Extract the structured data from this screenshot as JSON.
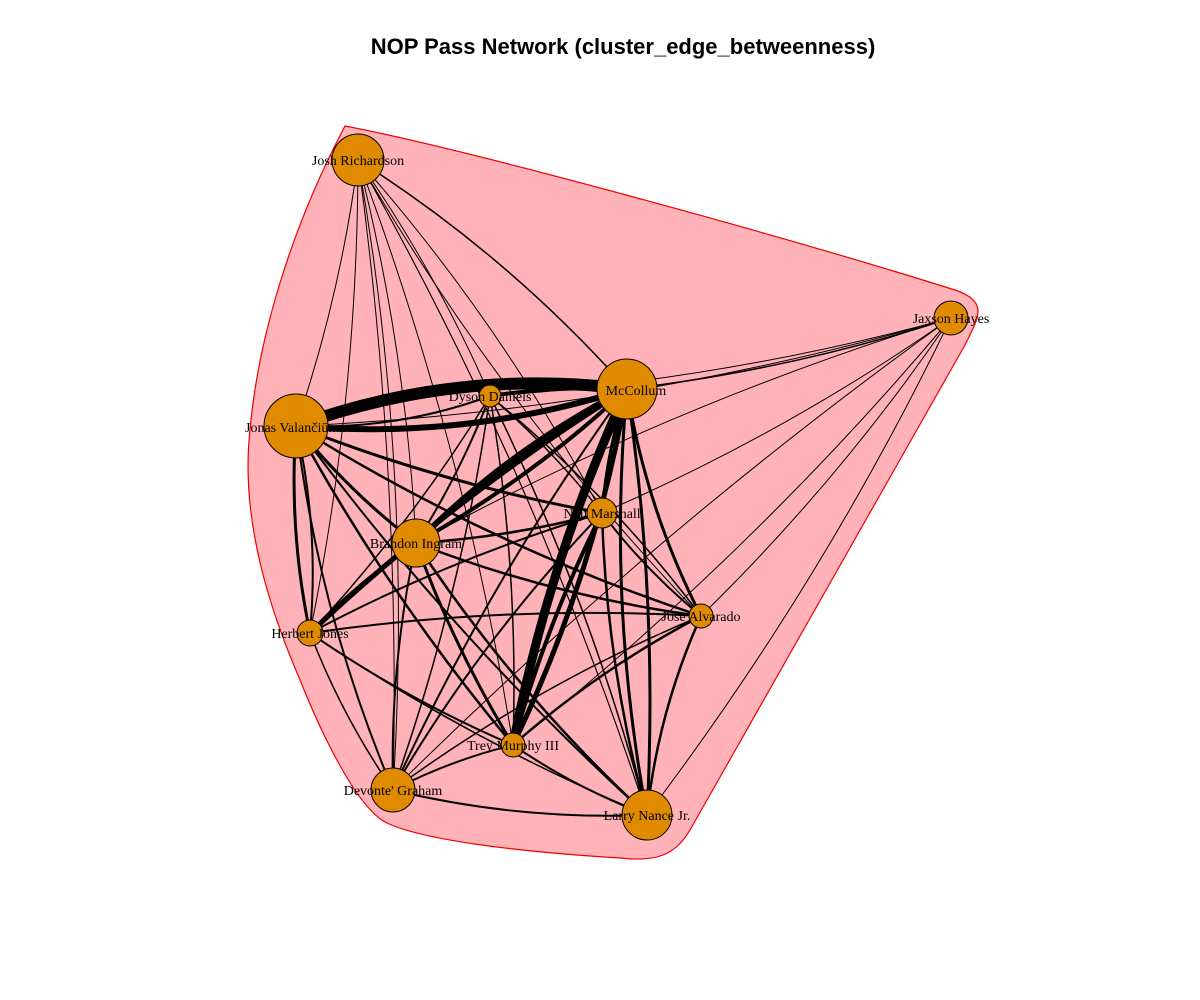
{
  "title": "NOP Pass Network (cluster_edge_betweenness)",
  "colors": {
    "cluster_fill": "#ffb3b8",
    "cluster_stroke": "#ee0000",
    "node_fill": "#e08a00",
    "node_stroke": "#000000",
    "edge": "#000000"
  },
  "nodes": [
    {
      "id": "josh",
      "label": "Josh Richardson"
    },
    {
      "id": "jaxson",
      "label": "Jaxson Hayes"
    },
    {
      "id": "mccollum",
      "label": "McCollum"
    },
    {
      "id": "dyson",
      "label": "Dyson Daniels"
    },
    {
      "id": "jonas",
      "label": "Jonas Valančiūnas"
    },
    {
      "id": "naji",
      "label": "Naji Marshall"
    },
    {
      "id": "brandon",
      "label": "Brandon Ingram"
    },
    {
      "id": "jose",
      "label": "Jose Alvarado"
    },
    {
      "id": "herbert",
      "label": "Herbert Jones"
    },
    {
      "id": "trey",
      "label": "Trey Murphy III"
    },
    {
      "id": "devonte",
      "label": "Devonte' Graham"
    },
    {
      "id": "larry",
      "label": "Larry Nance Jr."
    }
  ]
}
